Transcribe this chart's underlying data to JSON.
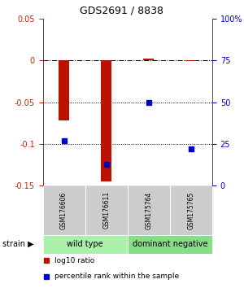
{
  "title": "GDS2691 / 8838",
  "samples": [
    "GSM176606",
    "GSM176611",
    "GSM175764",
    "GSM175765"
  ],
  "log10_ratio": [
    -0.072,
    -0.145,
    0.002,
    -0.001
  ],
  "percentile_rank": [
    27.0,
    13.0,
    50.0,
    22.0
  ],
  "groups": [
    {
      "label": "wild type",
      "samples": [
        0,
        1
      ],
      "color": "#aaf0aa"
    },
    {
      "label": "dominant negative",
      "samples": [
        2,
        3
      ],
      "color": "#88dd88"
    }
  ],
  "ylim_left": [
    -0.15,
    0.05
  ],
  "ylim_right": [
    0,
    100
  ],
  "yticks_left": [
    -0.15,
    -0.1,
    -0.05,
    0,
    0.05
  ],
  "yticks_right": [
    0,
    25,
    50,
    75,
    100
  ],
  "bar_color": "#bb1100",
  "dot_color": "#0000cc",
  "bar_width": 0.25,
  "legend_items": [
    {
      "label": "log10 ratio",
      "color": "#bb1100"
    },
    {
      "label": "percentile rank within the sample",
      "color": "#0000cc"
    }
  ],
  "gray_box_color": "#cccccc",
  "group_label_fontsize": 7,
  "sample_label_fontsize": 5.5,
  "axis_tick_fontsize": 7,
  "title_fontsize": 9
}
